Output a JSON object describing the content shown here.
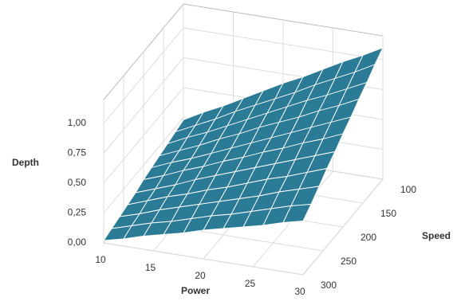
{
  "chart_data": {
    "type": "surface",
    "x_label": "Power",
    "y_label": "Speed",
    "z_label": "Depth",
    "x": [
      10,
      12,
      14,
      16,
      18,
      20,
      22,
      24,
      26,
      28,
      30
    ],
    "y": [
      100,
      120,
      140,
      160,
      180,
      200,
      220,
      240,
      260,
      280,
      300
    ],
    "z": [
      [
        0.23,
        0.32,
        0.4,
        0.49,
        0.58,
        0.67,
        0.75,
        0.84,
        0.93,
        1.01,
        1.1
      ],
      [
        0.21,
        0.29,
        0.37,
        0.46,
        0.54,
        0.62,
        0.7,
        0.79,
        0.87,
        0.95,
        1.04
      ],
      [
        0.19,
        0.27,
        0.34,
        0.42,
        0.5,
        0.58,
        0.66,
        0.74,
        0.81,
        0.89,
        0.97
      ],
      [
        0.17,
        0.24,
        0.31,
        0.39,
        0.46,
        0.54,
        0.61,
        0.68,
        0.76,
        0.83,
        0.91
      ],
      [
        0.15,
        0.22,
        0.28,
        0.35,
        0.42,
        0.49,
        0.56,
        0.63,
        0.7,
        0.77,
        0.84
      ],
      [
        0.13,
        0.19,
        0.26,
        0.32,
        0.39,
        0.45,
        0.52,
        0.58,
        0.65,
        0.71,
        0.78
      ],
      [
        0.1,
        0.16,
        0.22,
        0.29,
        0.35,
        0.41,
        0.47,
        0.53,
        0.59,
        0.65,
        0.71
      ],
      [
        0.08,
        0.14,
        0.2,
        0.25,
        0.31,
        0.36,
        0.42,
        0.48,
        0.53,
        0.59,
        0.65
      ],
      [
        0.06,
        0.11,
        0.17,
        0.22,
        0.27,
        0.32,
        0.37,
        0.42,
        0.48,
        0.53,
        0.58
      ],
      [
        0.04,
        0.09,
        0.14,
        0.18,
        0.23,
        0.28,
        0.32,
        0.37,
        0.42,
        0.47,
        0.51
      ],
      [
        0.02,
        0.06,
        0.11,
        0.15,
        0.19,
        0.24,
        0.28,
        0.32,
        0.36,
        0.41,
        0.45
      ]
    ],
    "xlim": [
      10,
      30
    ],
    "ylim": [
      100,
      300
    ],
    "zlim": [
      0,
      1.2
    ],
    "xticks": [
      10,
      15,
      20,
      25,
      30
    ],
    "yticks": [
      100,
      150,
      200,
      250,
      300
    ],
    "zticks": [
      {
        "value": 0,
        "label": "0,00"
      },
      {
        "value": 0.25,
        "label": "0,25"
      },
      {
        "value": 0.5,
        "label": "0,50"
      },
      {
        "value": 0.75,
        "label": "0,75"
      },
      {
        "value": 1,
        "label": "1,00"
      }
    ],
    "color": "#2b7b96",
    "grid": true
  }
}
